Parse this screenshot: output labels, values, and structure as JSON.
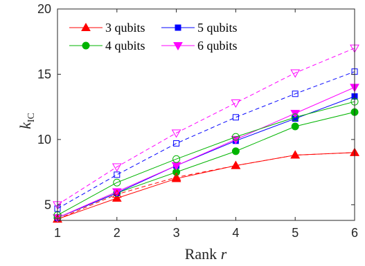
{
  "chart_data": {
    "type": "line",
    "xlabel": "Rank r",
    "ylabel": "k_IC",
    "xlim": [
      1,
      6
    ],
    "ylim": [
      3.8,
      20
    ],
    "x": [
      1,
      2,
      3,
      4,
      5,
      6
    ],
    "x_ticks": [
      "1",
      "2",
      "3",
      "4",
      "5",
      "6"
    ],
    "y_ticks": [
      {
        "value": 5,
        "label": "5"
      },
      {
        "value": 10,
        "label": "10"
      },
      {
        "value": 15,
        "label": "15"
      },
      {
        "value": 20,
        "label": "20"
      }
    ],
    "grid": false,
    "legend_position": "top-left",
    "series": [
      {
        "name": "3 qubits",
        "color": "#ff0000",
        "marker": "triangle-up",
        "line": "solid",
        "values": [
          3.9,
          5.5,
          7.0,
          8.0,
          8.8,
          9.0
        ]
      },
      {
        "name": "4 qubits",
        "color": "#00b400",
        "marker": "circle",
        "line": "solid",
        "values": [
          4.0,
          5.9,
          7.5,
          9.1,
          11.0,
          12.1
        ]
      },
      {
        "name": "5 qubits",
        "color": "#0000ff",
        "marker": "square",
        "line": "solid",
        "values": [
          4.0,
          5.9,
          8.0,
          9.9,
          11.6,
          13.3
        ]
      },
      {
        "name": "6 qubits",
        "color": "#ff00ff",
        "marker": "triangle-down",
        "line": "solid",
        "values": [
          4.0,
          6.0,
          8.0,
          10.0,
          12.0,
          14.0
        ]
      },
      {
        "name": "",
        "color": "#ff0000",
        "marker": "triangle-up-open",
        "line": "dashed",
        "values": [
          3.9,
          5.8,
          7.1,
          8.0,
          8.8,
          9.0
        ]
      },
      {
        "name": "",
        "color": "#00b400",
        "marker": "circle-open",
        "line": "solid",
        "values": [
          4.2,
          6.7,
          8.5,
          10.2,
          11.7,
          12.9
        ]
      },
      {
        "name": "",
        "color": "#0000ff",
        "marker": "square-open",
        "line": "dashed",
        "values": [
          4.7,
          7.3,
          9.7,
          11.7,
          13.5,
          15.2
        ]
      },
      {
        "name": "",
        "color": "#ff00ff",
        "marker": "triangle-down-open",
        "line": "dashed",
        "values": [
          5.0,
          7.9,
          10.5,
          12.8,
          15.1,
          17.0
        ]
      }
    ]
  }
}
